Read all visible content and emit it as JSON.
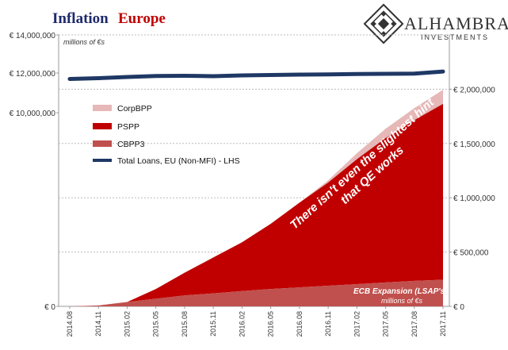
{
  "header": {
    "title_part1": "Inflation",
    "title_part2": "Europe"
  },
  "logo": {
    "name": "ALHAMBRA",
    "subtitle": "INVESTMENTS"
  },
  "chart_data": {
    "type": "area",
    "left_axis": {
      "ticks": [
        {
          "value": 0,
          "label": "€ 0"
        },
        {
          "value": 10000000,
          "label": "€ 10,000,000"
        },
        {
          "value": 12000000,
          "label": "€ 12,000,000"
        },
        {
          "value": 14000000,
          "label": "€ 14,000,000"
        }
      ],
      "units": "millions of €s"
    },
    "right_axis": {
      "range": [
        0,
        2500000
      ],
      "ticks": [
        {
          "value": 0,
          "label": "€ 0"
        },
        {
          "value": 500000,
          "label": "€ 500,000"
        },
        {
          "value": 1000000,
          "label": "€ 1,000,000"
        },
        {
          "value": 1500000,
          "label": "€ 1,500,000"
        },
        {
          "value": 2000000,
          "label": "€ 2,000,000"
        }
      ],
      "units": "millions of €s"
    },
    "x": [
      "2014.08",
      "2014.11",
      "2015.02",
      "2015.05",
      "2015.08",
      "2015.11",
      "2016.02",
      "2016.05",
      "2016.08",
      "2016.11",
      "2017.02",
      "2017.05",
      "2017.08",
      "2017.11"
    ],
    "series": [
      {
        "name": "CorpBPP",
        "axis": "right",
        "color": "#e6b8b7",
        "values": [
          0,
          0,
          0,
          0,
          0,
          0,
          0,
          0,
          0,
          20000,
          55000,
          85000,
          110000,
          130000
        ]
      },
      {
        "name": "PSPP",
        "axis": "right",
        "color": "#c00000",
        "values": [
          0,
          0,
          0,
          90000,
          210000,
          330000,
          450000,
          600000,
          780000,
          950000,
          1150000,
          1330000,
          1480000,
          1620000
        ]
      },
      {
        "name": "CBPP3",
        "axis": "right",
        "color": "#c0504d",
        "values": [
          0,
          8000,
          40000,
          70000,
          100000,
          120000,
          140000,
          160000,
          175000,
          190000,
          205000,
          220000,
          235000,
          245000
        ]
      },
      {
        "name": "Total Loans, EU (Non-MFI) - LHS",
        "axis": "left",
        "color": "#1f3864",
        "values": [
          11700000.0,
          11740000.0,
          11800000.0,
          11850000.0,
          11860000.0,
          11840000.0,
          11880000.0,
          11900000.0,
          11920000.0,
          11930000.0,
          11950000.0,
          11960000.0,
          11970000.0,
          12080000.0
        ]
      }
    ],
    "annotations": {
      "main": "There isn't even the slightest hint",
      "main2": "that QE works",
      "bottom": "ECB Expansion (LSAP's)"
    },
    "grid": true,
    "legend": "top-left"
  }
}
